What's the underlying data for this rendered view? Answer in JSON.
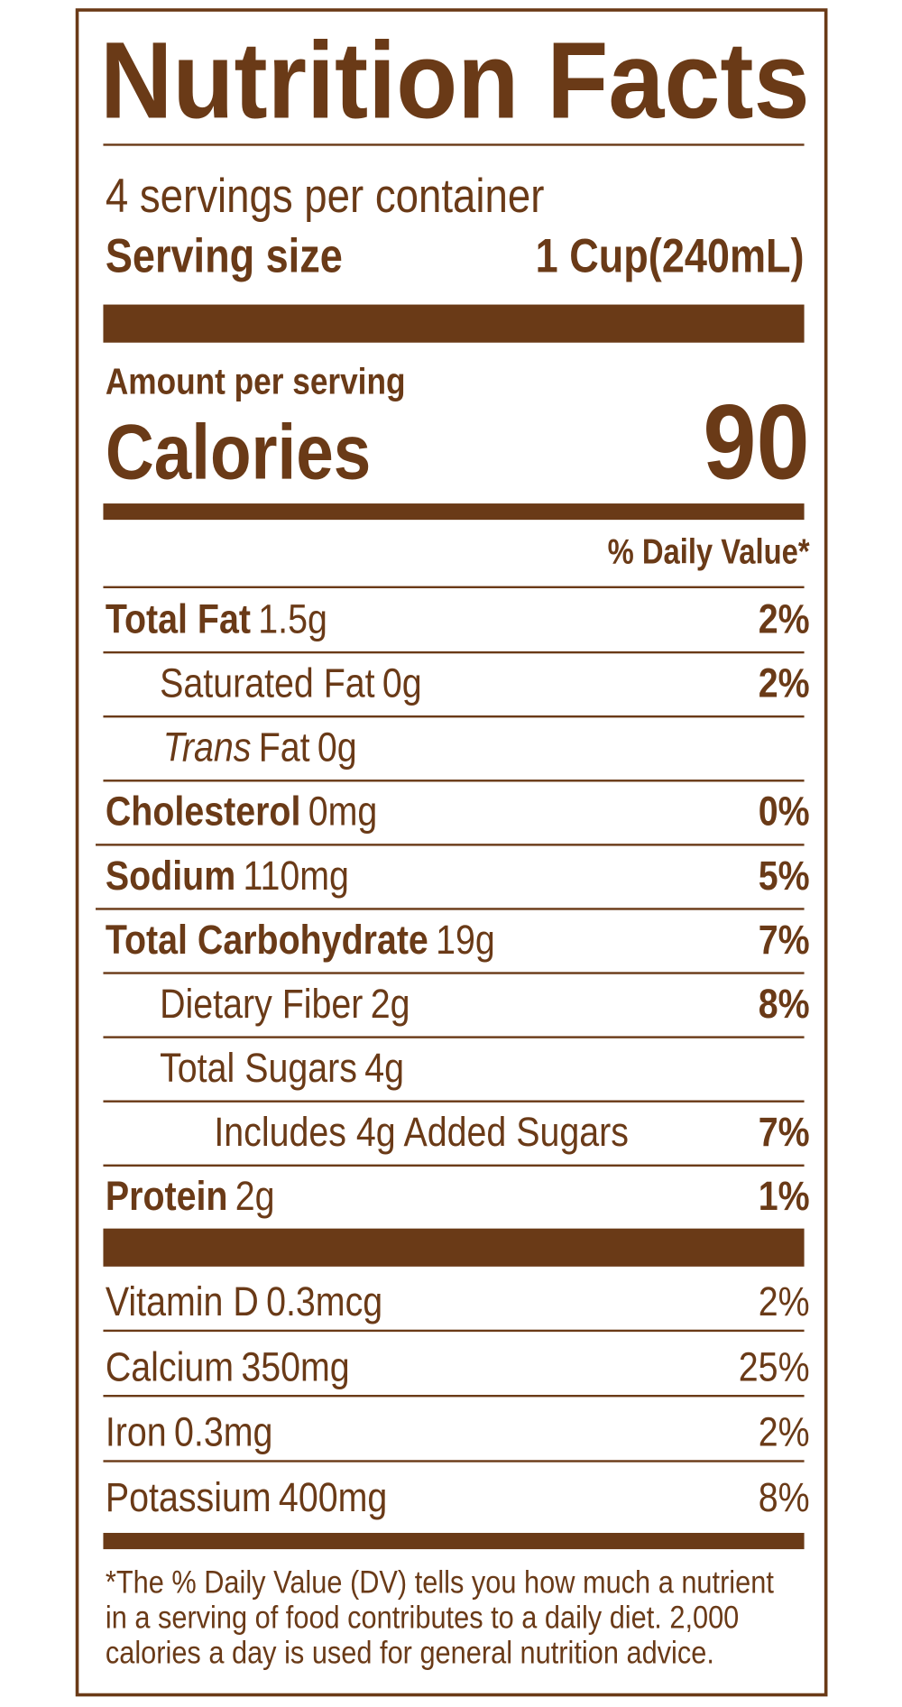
{
  "title": "Nutrition Facts",
  "servings": "4 servings per container",
  "serving_size": {
    "label": "Serving size",
    "value": "1 Cup(240mL)"
  },
  "amount_per_serving": "Amount per serving",
  "calories": {
    "label": "Calories",
    "value": 90
  },
  "daily_value_header": "% Daily Value*",
  "nutrients": [
    {
      "label": "Total Fat",
      "amount": "1.5g",
      "dv": "2%"
    },
    {
      "label": "Saturated Fat",
      "amount": "0g",
      "dv": "2%"
    },
    {
      "label_italic": "Trans",
      "label": "Fat",
      "amount": "0g"
    },
    {
      "label": "Cholesterol",
      "amount": "0mg",
      "dv": "0%"
    },
    {
      "label": "Sodium",
      "amount": "110mg",
      "dv": "5%"
    },
    {
      "label": "Total Carbohydrate",
      "amount": "19g",
      "dv": "7%"
    },
    {
      "label": "Dietary Fiber",
      "amount": "2g",
      "dv": "8%"
    },
    {
      "label": "Total Sugars",
      "amount": "4g"
    },
    {
      "label": "Includes 4g Added Sugars",
      "dv": "7%"
    },
    {
      "label": "Protein",
      "amount": "2g",
      "dv": "1%"
    }
  ],
  "vitamins": [
    {
      "label": "Vitamin D",
      "amount": "0.3mcg",
      "dv": "2%"
    },
    {
      "label": "Calcium",
      "amount": "350mg",
      "dv": "25%"
    },
    {
      "label": "Iron",
      "amount": "0.3mg",
      "dv": "2%"
    },
    {
      "label": "Potassium",
      "amount": "400mg",
      "dv": "8%"
    }
  ],
  "footnote": [
    "*The % Daily Value (DV) tells you how much a nutrient",
    "in a serving of food contributes to a daily diet. 2,000",
    "calories a day is used for general nutrition advice."
  ]
}
